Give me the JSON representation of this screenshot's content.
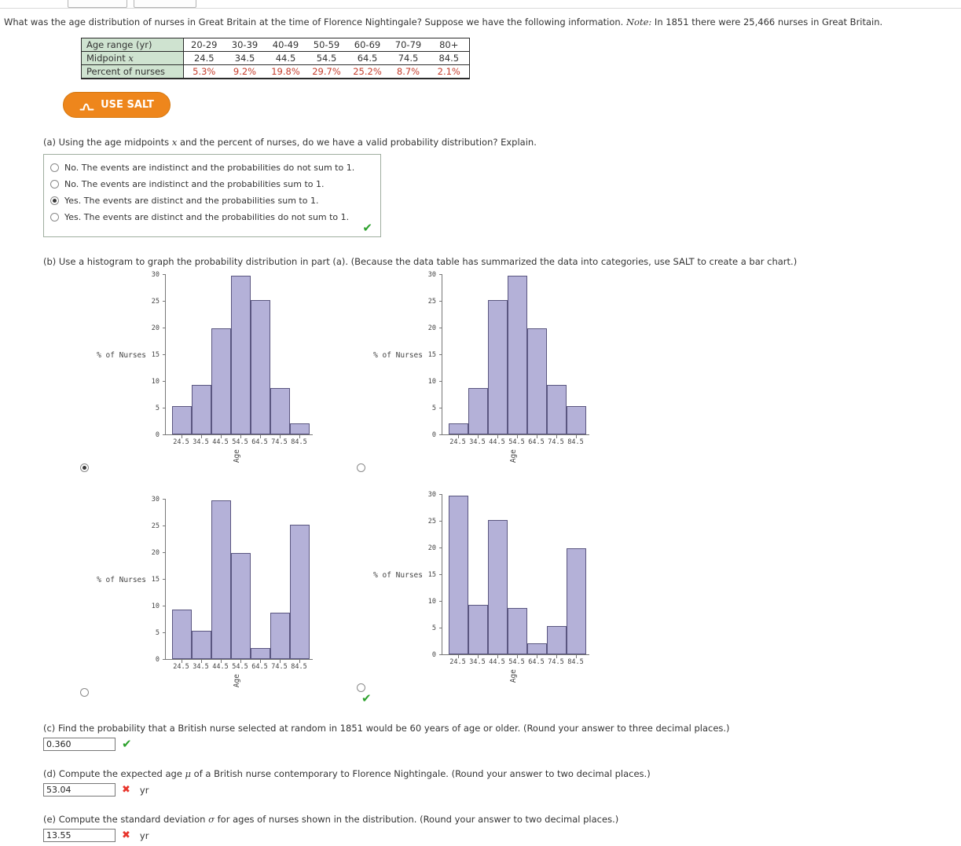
{
  "colors": {
    "salt_orange": "#ee861c",
    "bar_fill": "#b4b1d8",
    "bar_border": "#5a5680",
    "correct_green": "#2da12d",
    "incorrect_red": "#e8352c",
    "percent_red": "#c43b2a",
    "table_label_bg": "#cfe3d0"
  },
  "marks": {
    "correct": "✔",
    "incorrect": "✖"
  },
  "question": {
    "intro_before_note": "What was the age distribution of nurses in Great Britain at the time of Florence Nightingale? Suppose we have the following information. ",
    "note_label": "Note:",
    "intro_after_note": " In 1851 there were 25,466 nurses in Great Britain."
  },
  "data_table": {
    "row_labels": [
      "Age range (yr)",
      "Midpoint",
      "Percent of nurses"
    ],
    "midpoint_var": "x",
    "age_ranges": [
      "20-29",
      "30-39",
      "40-49",
      "50-59",
      "60-69",
      "70-79",
      "80+"
    ],
    "midpoints": [
      "24.5",
      "34.5",
      "44.5",
      "54.5",
      "64.5",
      "74.5",
      "84.5"
    ],
    "percents": [
      "5.3%",
      "9.2%",
      "19.8%",
      "29.7%",
      "25.2%",
      "8.7%",
      "2.1%"
    ]
  },
  "salt_button": {
    "label": "USE SALT"
  },
  "part_a": {
    "prompt_before": "(a) Using the age midpoints ",
    "prompt_var": "x",
    "prompt_after": " and the percent of nurses, do we have a valid probability distribution? Explain.",
    "options": [
      {
        "label": "No. The events are indistinct and the probabilities do not sum to 1.",
        "selected": false
      },
      {
        "label": "No. The events are indistinct and the probabilities sum to 1.",
        "selected": false
      },
      {
        "label": "Yes. The events are distinct and the probabilities sum to 1.",
        "selected": true
      },
      {
        "label": "Yes. The events are distinct and the probabilities do not sum to 1.",
        "selected": false
      }
    ],
    "result": "correct"
  },
  "part_b": {
    "prompt": "(b) Use a histogram to graph the probability distribution in part (a). (Because the data table has summarized the data into categories, use SALT to create a bar chart.)",
    "result": "correct"
  },
  "chart_data": [
    {
      "type": "bar",
      "categories": [
        "24.5",
        "34.5",
        "44.5",
        "54.5",
        "64.5",
        "74.5",
        "84.5"
      ],
      "values": [
        5.3,
        9.2,
        19.8,
        29.7,
        25.2,
        8.7,
        2.1
      ],
      "xlabel": "Age",
      "ylabel": "% of Nurses",
      "ylim": [
        0,
        30
      ],
      "yticks": [
        0,
        5,
        10,
        15,
        20,
        25,
        30
      ],
      "grid": false,
      "selected": true
    },
    {
      "type": "bar",
      "categories": [
        "24.5",
        "34.5",
        "44.5",
        "54.5",
        "64.5",
        "74.5",
        "84.5"
      ],
      "values": [
        2.1,
        8.7,
        25.2,
        29.7,
        19.8,
        9.2,
        5.3
      ],
      "xlabel": "Age",
      "ylabel": "% of Nurses",
      "ylim": [
        0,
        30
      ],
      "yticks": [
        0,
        5,
        10,
        15,
        20,
        25,
        30
      ],
      "grid": false,
      "selected": false
    },
    {
      "type": "bar",
      "categories": [
        "24.5",
        "34.5",
        "44.5",
        "54.5",
        "64.5",
        "74.5",
        "84.5"
      ],
      "values": [
        9.2,
        5.3,
        29.7,
        19.8,
        2.1,
        8.7,
        25.2
      ],
      "xlabel": "Age",
      "ylabel": "% of Nurses",
      "ylim": [
        0,
        30
      ],
      "yticks": [
        0,
        5,
        10,
        15,
        20,
        25,
        30
      ],
      "grid": false,
      "selected": false
    },
    {
      "type": "bar",
      "categories": [
        "24.5",
        "34.5",
        "44.5",
        "54.5",
        "64.5",
        "74.5",
        "84.5"
      ],
      "values": [
        29.7,
        9.2,
        25.2,
        8.7,
        2.1,
        5.3,
        19.8
      ],
      "xlabel": "Age",
      "ylabel": "% of Nurses",
      "ylim": [
        0,
        30
      ],
      "yticks": [
        0,
        5,
        10,
        15,
        20,
        25,
        30
      ],
      "grid": false,
      "selected": false
    }
  ],
  "part_c": {
    "prompt": "(c) Find the probability that a British nurse selected at random in 1851 would be 60 years of age or older. (Round your answer to three decimal places.)",
    "answer": "0.360",
    "result": "correct"
  },
  "part_d": {
    "prompt_before": "(d) Compute the expected age ",
    "prompt_var": "μ",
    "prompt_after": " of a British nurse contemporary to Florence Nightingale. (Round your answer to two decimal places.)",
    "answer": "53.04",
    "result": "incorrect",
    "unit": "yr"
  },
  "part_e": {
    "prompt_before": "(e) Compute the standard deviation ",
    "prompt_var": "σ",
    "prompt_after": " for ages of nurses shown in the distribution. (Round your answer to two decimal places.)",
    "answer": "13.55",
    "result": "incorrect",
    "unit": "yr"
  }
}
